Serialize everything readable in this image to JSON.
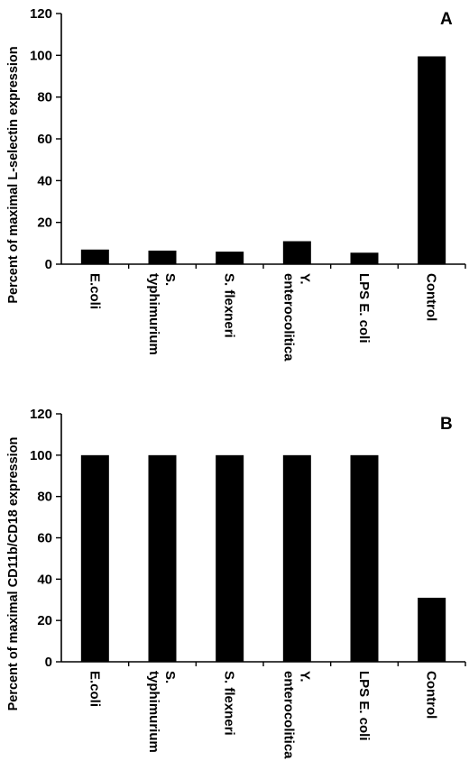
{
  "chart_data": [
    {
      "type": "bar",
      "panel": "A",
      "categories": [
        [
          "E.coli"
        ],
        [
          "S.",
          "typhimurium"
        ],
        [
          "S. flexneri"
        ],
        [
          "Y.",
          "enterocolitica"
        ],
        [
          "LPS E. coli"
        ],
        [
          "Control"
        ]
      ],
      "values": [
        7,
        6.5,
        6,
        11,
        5.5,
        99.5
      ],
      "ylabel": "Percent of maximal L-selectin expression",
      "ylim": [
        0,
        120
      ],
      "yticks": [
        0,
        20,
        40,
        60,
        80,
        100,
        120
      ],
      "grid": false,
      "bar_color": "#000000"
    },
    {
      "type": "bar",
      "panel": "B",
      "categories": [
        [
          "E.coli"
        ],
        [
          "S.",
          "typhimurium"
        ],
        [
          "S. flexneri"
        ],
        [
          "Y.",
          "enterocolitica"
        ],
        [
          "LPS E. coli"
        ],
        [
          "Control"
        ]
      ],
      "values": [
        100,
        100,
        100,
        100,
        100,
        31
      ],
      "ylabel": "Percent of maximal CD11b/CD18 expression",
      "ylim": [
        0,
        120
      ],
      "yticks": [
        0,
        20,
        40,
        60,
        80,
        100,
        120
      ],
      "grid": false,
      "bar_color": "#000000"
    }
  ]
}
